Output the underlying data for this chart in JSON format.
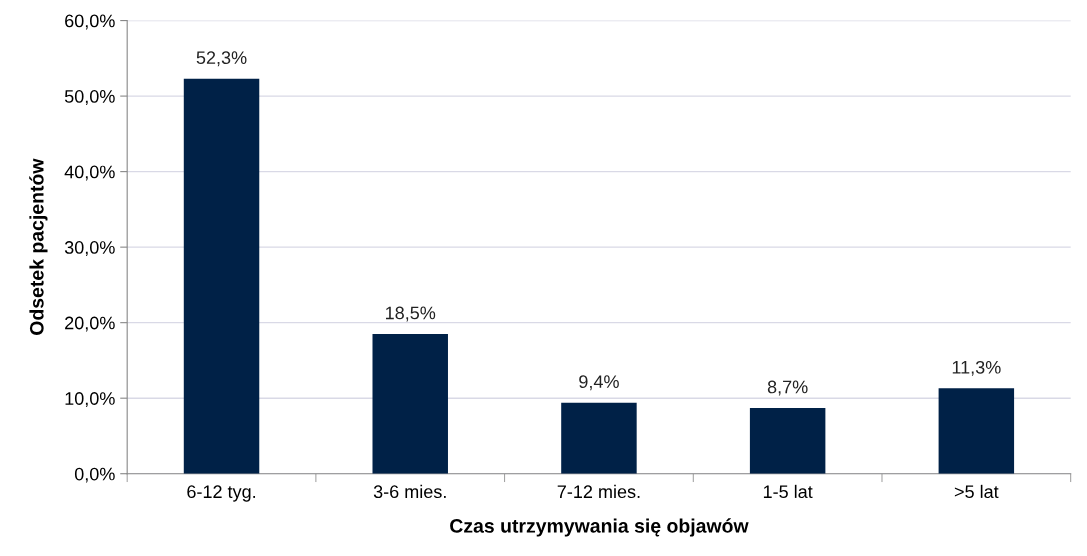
{
  "chart_data": {
    "type": "bar",
    "xlabel": "Czas utrzymywania się objawów",
    "ylabel": "Odsetek pacjentów",
    "categories": [
      "6-12 tyg.",
      "3-6 mies.",
      "7-12 mies.",
      "1-5 lat",
      ">5 lat"
    ],
    "values": [
      52.3,
      18.5,
      9.4,
      8.7,
      11.3
    ],
    "value_labels": [
      "52,3%",
      "18,5%",
      "9,4%",
      "8,7%",
      "11,3%"
    ],
    "color": "#002147",
    "ylim": [
      0,
      60
    ],
    "yticks": [
      {
        "value": 0,
        "label": "0,0%"
      },
      {
        "value": 10,
        "label": "10,0%"
      },
      {
        "value": 20,
        "label": "20,0%"
      },
      {
        "value": 30,
        "label": "30,0%"
      },
      {
        "value": 40,
        "label": "40,0%"
      },
      {
        "value": 50,
        "label": "50,0%"
      },
      {
        "value": 60,
        "label": "60,0%"
      }
    ],
    "grid": "y",
    "legend": false
  }
}
